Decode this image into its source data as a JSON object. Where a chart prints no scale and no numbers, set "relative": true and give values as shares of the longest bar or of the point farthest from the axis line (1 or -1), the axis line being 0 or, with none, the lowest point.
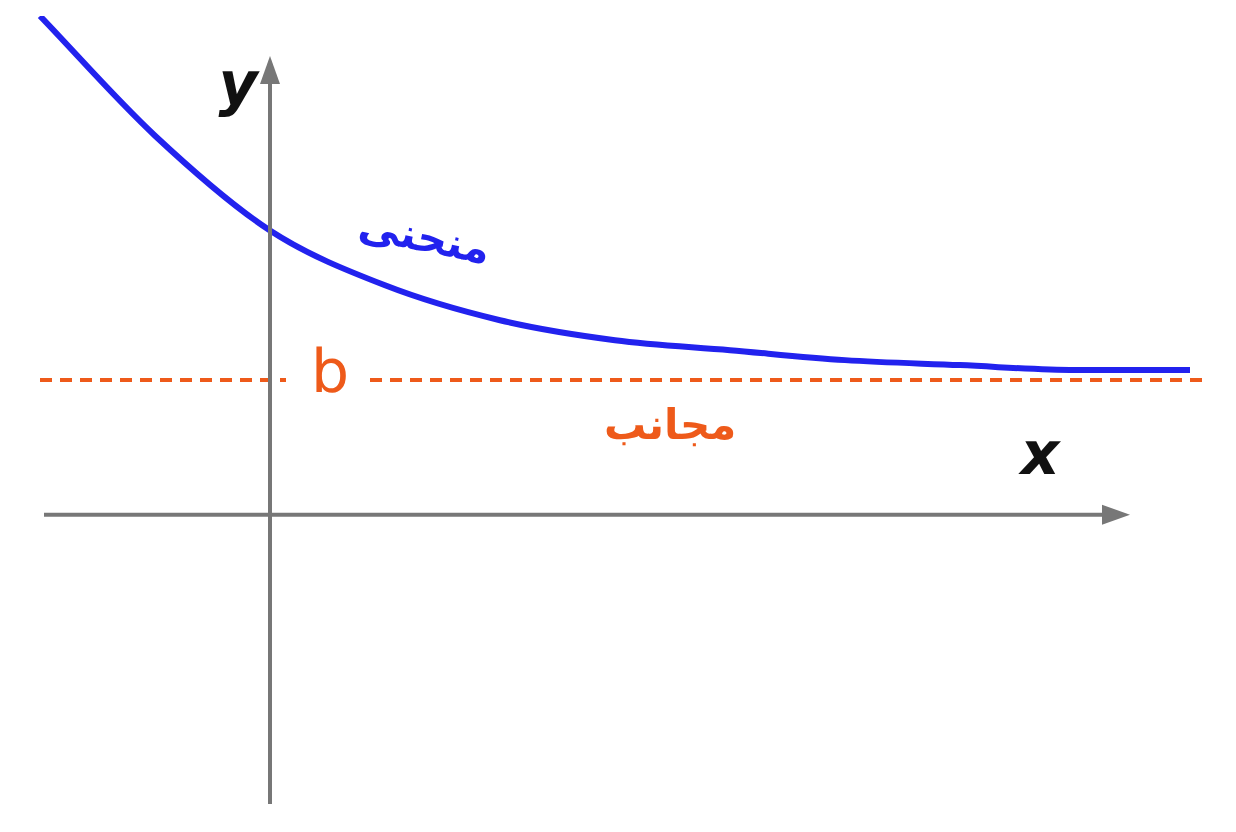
{
  "chart_data": {
    "type": "line",
    "relative": true,
    "xlabel": "x",
    "ylabel": "y",
    "categories": [
      null,
      null,
      null,
      null,
      null,
      null,
      null,
      null,
      null,
      null,
      null
    ],
    "series": [
      {
        "color": "#2222ee",
        "values": [
          1,
          0.76,
          0.57,
          0.46,
          0.39,
          0.35,
          0.33,
          0.31,
          0.3,
          0.29,
          0.29
        ]
      }
    ],
    "ref_lines": [
      {
        "axis": "y",
        "value": 0.27,
        "label": "b",
        "color": "#ee5a1a",
        "line_style": "dashed"
      }
    ],
    "annotations": [
      "منحنى",
      "مجانب"
    ],
    "marker": "none",
    "line_style": "solid",
    "legend": false
  }
}
